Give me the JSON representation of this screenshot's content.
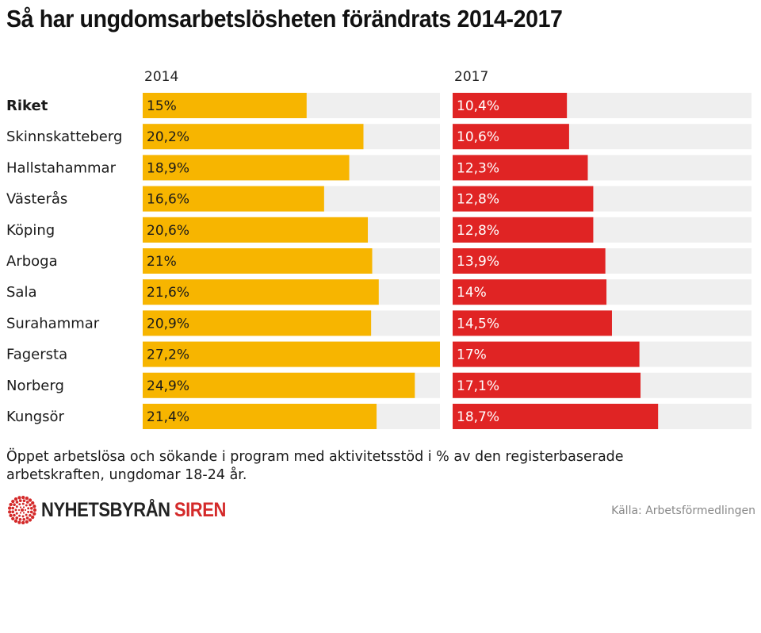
{
  "title": "Så har ungdomsarbetslösheten förändrats 2014-2017",
  "colors": {
    "bar_2014": "#f7b500",
    "bar_2017": "#e02424",
    "track": "#efefef",
    "brand_red": "#d42a2a"
  },
  "chart_data": {
    "type": "bar",
    "orientation": "horizontal",
    "title": "Så har ungdomsarbetslösheten förändrats 2014-2017",
    "xlim": [
      0,
      27.2
    ],
    "categories": [
      "Riket",
      "Skinnskatteberg",
      "Hallstahammar",
      "Västerås",
      "Köping",
      "Arboga",
      "Sala",
      "Surahammar",
      "Fagersta",
      "Norberg",
      "Kungsör"
    ],
    "series": [
      {
        "name": "2014",
        "values": [
          15,
          20.2,
          18.9,
          16.6,
          20.6,
          21,
          21.6,
          20.9,
          27.2,
          24.9,
          21.4
        ],
        "labels": [
          "15%",
          "20,2%",
          "18,9%",
          "16,6%",
          "20,6%",
          "21%",
          "21,6%",
          "20,9%",
          "27,2%",
          "24,9%",
          "21,4%"
        ]
      },
      {
        "name": "2017",
        "values": [
          10.4,
          10.6,
          12.3,
          12.8,
          12.8,
          13.9,
          14,
          14.5,
          17,
          17.1,
          18.7
        ],
        "labels": [
          "10,4%",
          "10,6%",
          "12,3%",
          "12,8%",
          "12,8%",
          "13,9%",
          "14%",
          "14,5%",
          "17%",
          "17,1%",
          "18,7%"
        ]
      }
    ]
  },
  "note": "Öppet arbetslösa och sökande i program med aktivitetsstöd i % av den registerbaserade arbetskraften, ungdomar 18-24 år.",
  "logo": {
    "part1": "NYHETSBYRÅN",
    "part2": "SIREN",
    "icon": "sunburst-icon"
  },
  "source": "Källa: Arbetsförmedlingen"
}
